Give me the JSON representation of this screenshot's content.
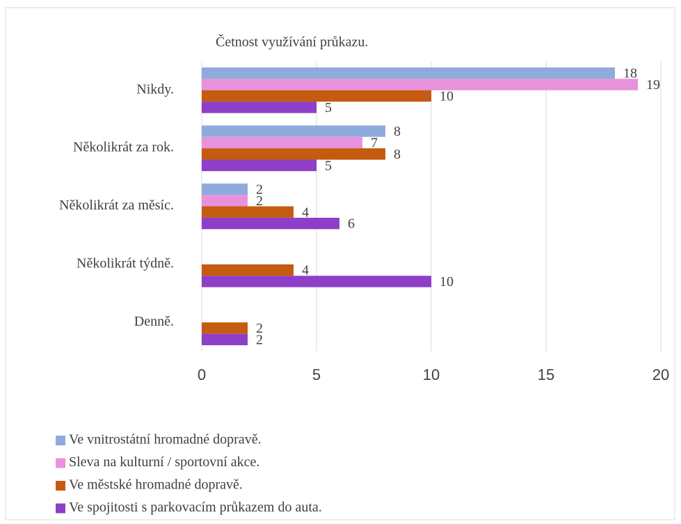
{
  "chart_data": {
    "type": "bar",
    "orientation": "horizontal",
    "title": "Četnost využívání průkazu.",
    "categories": [
      "Nikdy.",
      "Několikrát za rok.",
      "Několikrát za měsíc.",
      "Několikrát týdně.",
      "Denně."
    ],
    "series": [
      {
        "name": "Ve vnitrostátní hromadné dopravě.",
        "color": "#8faadc",
        "values": [
          18,
          8,
          2,
          null,
          null
        ]
      },
      {
        "name": "Sleva na kulturní / sportovní akce.",
        "color": "#e891dc",
        "values": [
          19,
          7,
          2,
          null,
          null
        ]
      },
      {
        "name": "Ve městské hromadné dopravě.",
        "color": "#c55a11",
        "values": [
          10,
          8,
          4,
          4,
          2
        ]
      },
      {
        "name": "Ve spojitosti s parkovacím průkazem do auta.",
        "color": "#8e3fc8",
        "values": [
          5,
          5,
          6,
          10,
          2
        ]
      }
    ],
    "xlim": [
      0,
      20
    ],
    "xticks": [
      0,
      5,
      10,
      15,
      20
    ],
    "grid": true,
    "legend": "bottom"
  }
}
